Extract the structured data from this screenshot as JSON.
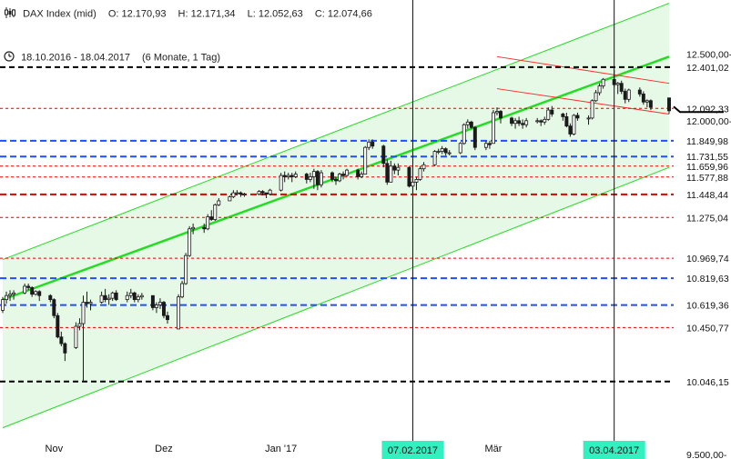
{
  "header": {
    "instrument": "DAX Index (mid)",
    "open_label": "O:",
    "open": "12.170,93",
    "high_label": "H:",
    "high": "12.171,34",
    "low_label": "L:",
    "low": "12.052,63",
    "close_label": "C:",
    "close": "12.074,66",
    "range": "18.10.2016 - 18.04.2017",
    "period": "(6 Monate, 1 Tag)",
    "chart_icon": "candlestick-icon",
    "clock_icon": "clock-icon"
  },
  "colors": {
    "up": "#1a1a1a",
    "down": "#1a1a1a",
    "channel_line": "#22dd22",
    "channel_fill": "#ddf7dd",
    "channel_mid": "#22dd22",
    "resistance_trend": "#ff2a2a",
    "level_black": "#000000",
    "level_blue": "#1f4fff",
    "level_red": "#e00000",
    "marker_bg": "#33f0c0"
  },
  "chart_data": {
    "type": "candlestick",
    "title": "DAX Index (mid)",
    "x_range": [
      "2016-10-18",
      "2017-04-18"
    ],
    "ylim": [
      9500,
      12700
    ],
    "x_ticks": [
      {
        "label": "Nov",
        "date": "2016-11-01"
      },
      {
        "label": "Dez",
        "date": "2016-12-01"
      },
      {
        "label": "Jan '17",
        "date": "2017-01-02"
      },
      {
        "label": "Mär",
        "date": "2017-03-01"
      }
    ],
    "y_ticks": [
      {
        "label": "12.500,00-",
        "value": 12500
      },
      {
        "label": "12.000,00-",
        "value": 12000
      },
      {
        "label": "9.500,00-",
        "value": 9500
      }
    ],
    "levels": [
      {
        "label": "12.401,02",
        "value": 12401.02,
        "style": "black"
      },
      {
        "label": "12.092,33",
        "value": 12092.33,
        "style": "red_thin",
        "current": true
      },
      {
        "label": "11.849,98",
        "value": 11849.98,
        "style": "blue"
      },
      {
        "label": "11.731,55",
        "value": 11731.55,
        "style": "blue"
      },
      {
        "label": "11.659,96",
        "value": 11659.96,
        "style": "red_thin"
      },
      {
        "label": "11.577,88",
        "value": 11577.88,
        "style": "red_thin"
      },
      {
        "label": "11.448,44",
        "value": 11448.44,
        "style": "red_thick"
      },
      {
        "label": "11.275,04",
        "value": 11275.04,
        "style": "red_thin"
      },
      {
        "label": "10.969,74",
        "value": 10969.74,
        "style": "red_thin"
      },
      {
        "label": "10.819,63",
        "value": 10819.63,
        "style": "blue"
      },
      {
        "label": "10.619,36",
        "value": 10619.36,
        "style": "blue"
      },
      {
        "label": "10.450,77",
        "value": 10450.77,
        "style": "red_thin"
      },
      {
        "label": "10.046,15",
        "value": 10046.15,
        "style": "black"
      }
    ],
    "vertical_markers": [
      {
        "label": "07.02.2017",
        "date": "2017-02-07"
      },
      {
        "label": "03.04.2017",
        "date": "2017-04-03"
      }
    ],
    "trend_channel": {
      "lower": [
        {
          "date": "2016-10-18",
          "value": 9700
        },
        {
          "date": "2017-04-18",
          "value": 11650
        }
      ],
      "middle": [
        {
          "date": "2016-10-18",
          "value": 10660
        },
        {
          "date": "2017-04-18",
          "value": 12480
        }
      ],
      "upper": [
        {
          "date": "2016-10-18",
          "value": 10960
        },
        {
          "date": "2017-04-18",
          "value": 12880
        }
      ]
    },
    "resistance_channel": [
      [
        {
          "date": "2017-03-02",
          "value": 12240
        },
        {
          "date": "2017-04-18",
          "value": 12050
        }
      ],
      [
        {
          "date": "2017-03-02",
          "value": 12480
        },
        {
          "date": "2017-04-18",
          "value": 12280
        }
      ]
    ],
    "candles": [
      {
        "d": "2016-10-18",
        "o": 10580,
        "h": 10680,
        "l": 10560,
        "c": 10660
      },
      {
        "d": "2016-10-19",
        "o": 10660,
        "h": 10720,
        "l": 10630,
        "c": 10690
      },
      {
        "d": "2016-10-20",
        "o": 10690,
        "h": 10730,
        "l": 10650,
        "c": 10700
      },
      {
        "d": "2016-10-21",
        "o": 10700,
        "h": 10730,
        "l": 10660,
        "c": 10710
      },
      {
        "d": "2016-10-24",
        "o": 10710,
        "h": 10780,
        "l": 10700,
        "c": 10760
      },
      {
        "d": "2016-10-25",
        "o": 10760,
        "h": 10780,
        "l": 10730,
        "c": 10750
      },
      {
        "d": "2016-10-26",
        "o": 10750,
        "h": 10760,
        "l": 10680,
        "c": 10700
      },
      {
        "d": "2016-10-27",
        "o": 10700,
        "h": 10730,
        "l": 10690,
        "c": 10720
      },
      {
        "d": "2016-10-28",
        "o": 10720,
        "h": 10730,
        "l": 10650,
        "c": 10690
      },
      {
        "d": "2016-10-31",
        "o": 10690,
        "h": 10700,
        "l": 10640,
        "c": 10660
      },
      {
        "d": "2016-11-01",
        "o": 10660,
        "h": 10670,
        "l": 10520,
        "c": 10540
      },
      {
        "d": "2016-11-02",
        "o": 10540,
        "h": 10560,
        "l": 10370,
        "c": 10380
      },
      {
        "d": "2016-11-03",
        "o": 10380,
        "h": 10420,
        "l": 10310,
        "c": 10330
      },
      {
        "d": "2016-11-04",
        "o": 10330,
        "h": 10340,
        "l": 10200,
        "c": 10260
      },
      {
        "d": "2016-11-07",
        "o": 10300,
        "h": 10490,
        "l": 10290,
        "c": 10460
      },
      {
        "d": "2016-11-08",
        "o": 10460,
        "h": 10520,
        "l": 10430,
        "c": 10480
      },
      {
        "d": "2016-11-09",
        "o": 10480,
        "h": 10690,
        "l": 10046,
        "c": 10640
      },
      {
        "d": "2016-11-10",
        "o": 10640,
        "h": 10720,
        "l": 10600,
        "c": 10630
      },
      {
        "d": "2016-11-11",
        "o": 10630,
        "h": 10660,
        "l": 10580,
        "c": 10640
      },
      {
        "d": "2016-11-14",
        "o": 10640,
        "h": 10720,
        "l": 10630,
        "c": 10690
      },
      {
        "d": "2016-11-15",
        "o": 10690,
        "h": 10740,
        "l": 10640,
        "c": 10660
      },
      {
        "d": "2016-11-16",
        "o": 10660,
        "h": 10700,
        "l": 10620,
        "c": 10670
      },
      {
        "d": "2016-11-17",
        "o": 10670,
        "h": 10720,
        "l": 10650,
        "c": 10710
      },
      {
        "d": "2016-11-18",
        "o": 10710,
        "h": 10730,
        "l": 10650,
        "c": 10660
      },
      {
        "d": "2016-11-21",
        "o": 10660,
        "h": 10720,
        "l": 10640,
        "c": 10690
      },
      {
        "d": "2016-11-22",
        "o": 10690,
        "h": 10740,
        "l": 10670,
        "c": 10710
      },
      {
        "d": "2016-11-23",
        "o": 10710,
        "h": 10720,
        "l": 10640,
        "c": 10660
      },
      {
        "d": "2016-11-24",
        "o": 10660,
        "h": 10700,
        "l": 10640,
        "c": 10680
      },
      {
        "d": "2016-11-25",
        "o": 10680,
        "h": 10710,
        "l": 10660,
        "c": 10690
      },
      {
        "d": "2016-11-28",
        "o": 10690,
        "h": 10690,
        "l": 10580,
        "c": 10600
      },
      {
        "d": "2016-11-29",
        "o": 10600,
        "h": 10640,
        "l": 10560,
        "c": 10620
      },
      {
        "d": "2016-11-30",
        "o": 10620,
        "h": 10670,
        "l": 10590,
        "c": 10640
      },
      {
        "d": "2016-12-01",
        "o": 10640,
        "h": 10650,
        "l": 10520,
        "c": 10540
      },
      {
        "d": "2016-12-02",
        "o": 10540,
        "h": 10570,
        "l": 10480,
        "c": 10510
      },
      {
        "d": "2016-12-05",
        "o": 10440,
        "h": 10700,
        "l": 10440,
        "c": 10680
      },
      {
        "d": "2016-12-06",
        "o": 10680,
        "h": 10800,
        "l": 10670,
        "c": 10780
      },
      {
        "d": "2016-12-07",
        "o": 10780,
        "h": 11010,
        "l": 10770,
        "c": 10990
      },
      {
        "d": "2016-12-08",
        "o": 10990,
        "h": 11210,
        "l": 10980,
        "c": 11190
      },
      {
        "d": "2016-12-09",
        "o": 11190,
        "h": 11230,
        "l": 11150,
        "c": 11200
      },
      {
        "d": "2016-12-12",
        "o": 11200,
        "h": 11230,
        "l": 11160,
        "c": 11190
      },
      {
        "d": "2016-12-13",
        "o": 11190,
        "h": 11300,
        "l": 11180,
        "c": 11280
      },
      {
        "d": "2016-12-14",
        "o": 11280,
        "h": 11330,
        "l": 11250,
        "c": 11260
      },
      {
        "d": "2016-12-15",
        "o": 11260,
        "h": 11380,
        "l": 11250,
        "c": 11370
      },
      {
        "d": "2016-12-16",
        "o": 11370,
        "h": 11420,
        "l": 11360,
        "c": 11400
      },
      {
        "d": "2016-12-19",
        "o": 11400,
        "h": 11440,
        "l": 11400,
        "c": 11430
      },
      {
        "d": "2016-12-20",
        "o": 11430,
        "h": 11480,
        "l": 11420,
        "c": 11460
      },
      {
        "d": "2016-12-21",
        "o": 11460,
        "h": 11480,
        "l": 11440,
        "c": 11460
      },
      {
        "d": "2016-12-22",
        "o": 11460,
        "h": 11470,
        "l": 11430,
        "c": 11450
      },
      {
        "d": "2016-12-23",
        "o": 11450,
        "h": 11460,
        "l": 11430,
        "c": 11450
      },
      {
        "d": "2016-12-27",
        "o": 11450,
        "h": 11480,
        "l": 11440,
        "c": 11470
      },
      {
        "d": "2016-12-28",
        "o": 11470,
        "h": 11480,
        "l": 11440,
        "c": 11460
      },
      {
        "d": "2016-12-29",
        "o": 11460,
        "h": 11460,
        "l": 11420,
        "c": 11450
      },
      {
        "d": "2016-12-30",
        "o": 11450,
        "h": 11490,
        "l": 11440,
        "c": 11480
      },
      {
        "d": "2017-01-02",
        "o": 11480,
        "h": 11610,
        "l": 11470,
        "c": 11590
      },
      {
        "d": "2017-01-03",
        "o": 11590,
        "h": 11620,
        "l": 11540,
        "c": 11580
      },
      {
        "d": "2017-01-04",
        "o": 11580,
        "h": 11610,
        "l": 11560,
        "c": 11590
      },
      {
        "d": "2017-01-05",
        "o": 11590,
        "h": 11610,
        "l": 11540,
        "c": 11580
      },
      {
        "d": "2017-01-06",
        "o": 11580,
        "h": 11620,
        "l": 11570,
        "c": 11600
      },
      {
        "d": "2017-01-09",
        "o": 11600,
        "h": 11610,
        "l": 11530,
        "c": 11560
      },
      {
        "d": "2017-01-10",
        "o": 11560,
        "h": 11610,
        "l": 11540,
        "c": 11580
      },
      {
        "d": "2017-01-11",
        "o": 11580,
        "h": 11640,
        "l": 11490,
        "c": 11620
      },
      {
        "d": "2017-01-12",
        "o": 11620,
        "h": 11630,
        "l": 11480,
        "c": 11520
      },
      {
        "d": "2017-01-13",
        "o": 11520,
        "h": 11630,
        "l": 11500,
        "c": 11610
      },
      {
        "d": "2017-01-16",
        "o": 11610,
        "h": 11620,
        "l": 11540,
        "c": 11560
      },
      {
        "d": "2017-01-17",
        "o": 11560,
        "h": 11580,
        "l": 11520,
        "c": 11550
      },
      {
        "d": "2017-01-18",
        "o": 11550,
        "h": 11610,
        "l": 11540,
        "c": 11600
      },
      {
        "d": "2017-01-19",
        "o": 11600,
        "h": 11620,
        "l": 11560,
        "c": 11590
      },
      {
        "d": "2017-01-20",
        "o": 11590,
        "h": 11640,
        "l": 11580,
        "c": 11630
      },
      {
        "d": "2017-01-23",
        "o": 11630,
        "h": 11640,
        "l": 11560,
        "c": 11580
      },
      {
        "d": "2017-01-24",
        "o": 11580,
        "h": 11620,
        "l": 11570,
        "c": 11600
      },
      {
        "d": "2017-01-25",
        "o": 11600,
        "h": 11810,
        "l": 11600,
        "c": 11800
      },
      {
        "d": "2017-01-26",
        "o": 11800,
        "h": 11860,
        "l": 11780,
        "c": 11840
      },
      {
        "d": "2017-01-27",
        "o": 11840,
        "h": 11860,
        "l": 11790,
        "c": 11810
      },
      {
        "d": "2017-01-30",
        "o": 11810,
        "h": 11820,
        "l": 11650,
        "c": 11680
      },
      {
        "d": "2017-01-31",
        "o": 11680,
        "h": 11710,
        "l": 11520,
        "c": 11540
      },
      {
        "d": "2017-02-01",
        "o": 11540,
        "h": 11700,
        "l": 11540,
        "c": 11660
      },
      {
        "d": "2017-02-02",
        "o": 11660,
        "h": 11680,
        "l": 11600,
        "c": 11630
      },
      {
        "d": "2017-02-03",
        "o": 11630,
        "h": 11680,
        "l": 11590,
        "c": 11650
      },
      {
        "d": "2017-02-06",
        "o": 11650,
        "h": 11660,
        "l": 11500,
        "c": 11510
      },
      {
        "d": "2017-02-07",
        "o": 11510,
        "h": 11560,
        "l": 11440,
        "c": 11540
      },
      {
        "d": "2017-02-08",
        "o": 11540,
        "h": 11580,
        "l": 11480,
        "c": 11560
      },
      {
        "d": "2017-02-09",
        "o": 11560,
        "h": 11660,
        "l": 11550,
        "c": 11640
      },
      {
        "d": "2017-02-10",
        "o": 11640,
        "h": 11690,
        "l": 11620,
        "c": 11670
      },
      {
        "d": "2017-02-13",
        "o": 11670,
        "h": 11780,
        "l": 11660,
        "c": 11770
      },
      {
        "d": "2017-02-14",
        "o": 11770,
        "h": 11790,
        "l": 11750,
        "c": 11770
      },
      {
        "d": "2017-02-15",
        "o": 11770,
        "h": 11810,
        "l": 11750,
        "c": 11790
      },
      {
        "d": "2017-02-16",
        "o": 11790,
        "h": 11800,
        "l": 11740,
        "c": 11760
      },
      {
        "d": "2017-02-17",
        "o": 11760,
        "h": 11780,
        "l": 11740,
        "c": 11760
      },
      {
        "d": "2017-02-20",
        "o": 11760,
        "h": 11840,
        "l": 11750,
        "c": 11830
      },
      {
        "d": "2017-02-21",
        "o": 11830,
        "h": 11980,
        "l": 11820,
        "c": 11970
      },
      {
        "d": "2017-02-22",
        "o": 11970,
        "h": 12010,
        "l": 11940,
        "c": 11990
      },
      {
        "d": "2017-02-23",
        "o": 11990,
        "h": 12000,
        "l": 11940,
        "c": 11950
      },
      {
        "d": "2017-02-24",
        "o": 11950,
        "h": 11960,
        "l": 11780,
        "c": 11800
      },
      {
        "d": "2017-02-27",
        "o": 11800,
        "h": 11850,
        "l": 11780,
        "c": 11830
      },
      {
        "d": "2017-02-28",
        "o": 11830,
        "h": 11850,
        "l": 11790,
        "c": 11820
      },
      {
        "d": "2017-03-01",
        "o": 11830,
        "h": 12080,
        "l": 11830,
        "c": 12060
      },
      {
        "d": "2017-03-02",
        "o": 12060,
        "h": 12100,
        "l": 12040,
        "c": 12070
      },
      {
        "d": "2017-03-03",
        "o": 12070,
        "h": 12080,
        "l": 11980,
        "c": 12020
      },
      {
        "d": "2017-03-06",
        "o": 12020,
        "h": 12030,
        "l": 11960,
        "c": 11980
      },
      {
        "d": "2017-03-07",
        "o": 11980,
        "h": 12020,
        "l": 11940,
        "c": 12000
      },
      {
        "d": "2017-03-08",
        "o": 12000,
        "h": 12030,
        "l": 11960,
        "c": 11980
      },
      {
        "d": "2017-03-09",
        "o": 11980,
        "h": 12010,
        "l": 11940,
        "c": 11970
      },
      {
        "d": "2017-03-10",
        "o": 11970,
        "h": 12020,
        "l": 11950,
        "c": 12000
      },
      {
        "d": "2017-03-13",
        "o": 12000,
        "h": 12020,
        "l": 11980,
        "c": 12000
      },
      {
        "d": "2017-03-14",
        "o": 12000,
        "h": 12010,
        "l": 11960,
        "c": 11990
      },
      {
        "d": "2017-03-15",
        "o": 11990,
        "h": 12030,
        "l": 11970,
        "c": 12010
      },
      {
        "d": "2017-03-16",
        "o": 12010,
        "h": 12100,
        "l": 12000,
        "c": 12080
      },
      {
        "d": "2017-03-17",
        "o": 12080,
        "h": 12110,
        "l": 12030,
        "c": 12050
      },
      {
        "d": "2017-03-20",
        "o": 12050,
        "h": 12060,
        "l": 12000,
        "c": 12030
      },
      {
        "d": "2017-03-21",
        "o": 12030,
        "h": 12060,
        "l": 11950,
        "c": 11960
      },
      {
        "d": "2017-03-22",
        "o": 11960,
        "h": 11980,
        "l": 11880,
        "c": 11900
      },
      {
        "d": "2017-03-23",
        "o": 11900,
        "h": 12050,
        "l": 11890,
        "c": 12040
      },
      {
        "d": "2017-03-24",
        "o": 12040,
        "h": 12060,
        "l": 12000,
        "c": 12020
      },
      {
        "d": "2017-03-27",
        "o": 12020,
        "h": 12040,
        "l": 11970,
        "c": 12020
      },
      {
        "d": "2017-03-28",
        "o": 12020,
        "h": 12160,
        "l": 12010,
        "c": 12150
      },
      {
        "d": "2017-03-29",
        "o": 12150,
        "h": 12230,
        "l": 12140,
        "c": 12210
      },
      {
        "d": "2017-03-30",
        "o": 12210,
        "h": 12280,
        "l": 12190,
        "c": 12260
      },
      {
        "d": "2017-03-31",
        "o": 12260,
        "h": 12320,
        "l": 12240,
        "c": 12310
      },
      {
        "d": "2017-04-03",
        "o": 12310,
        "h": 12380,
        "l": 12250,
        "c": 12270
      },
      {
        "d": "2017-04-04",
        "o": 12270,
        "h": 12290,
        "l": 12200,
        "c": 12280
      },
      {
        "d": "2017-04-05",
        "o": 12280,
        "h": 12300,
        "l": 12200,
        "c": 12220
      },
      {
        "d": "2017-04-06",
        "o": 12220,
        "h": 12240,
        "l": 12130,
        "c": 12160
      },
      {
        "d": "2017-04-07",
        "o": 12160,
        "h": 12240,
        "l": 12140,
        "c": 12230
      },
      {
        "d": "2017-04-10",
        "o": 12230,
        "h": 12250,
        "l": 12180,
        "c": 12200
      },
      {
        "d": "2017-04-11",
        "o": 12200,
        "h": 12220,
        "l": 12120,
        "c": 12140
      },
      {
        "d": "2017-04-12",
        "o": 12140,
        "h": 12160,
        "l": 12100,
        "c": 12150
      },
      {
        "d": "2017-04-13",
        "o": 12150,
        "h": 12160,
        "l": 12080,
        "c": 12100
      },
      {
        "d": "2017-04-18",
        "o": 12170.93,
        "h": 12171.34,
        "l": 12052.63,
        "c": 12074.66
      }
    ]
  }
}
